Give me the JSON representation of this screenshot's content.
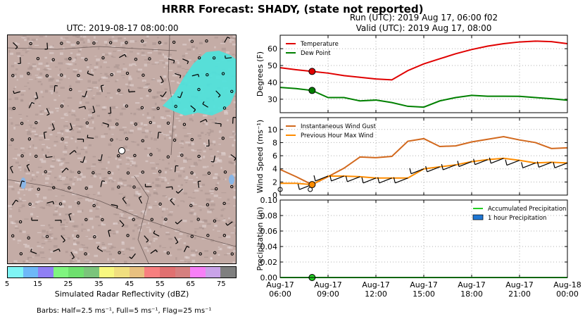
{
  "suptitle": "HRRR Forecast: SHADY, (state not reported)",
  "map": {
    "title": "UTC: 2019-08-17 08:00:00",
    "colorbar_label": "Simulated Radar Reflectivity (dBZ)",
    "colorbar_ticks": [
      "5",
      "15",
      "25",
      "35",
      "45",
      "55",
      "65",
      "75"
    ],
    "colorbar_colors": [
      "#7ff5f5",
      "#6db8f8",
      "#8f7ff4",
      "#7ff57f",
      "#6ee06e",
      "#7bc47b",
      "#f8f87f",
      "#f1df7f",
      "#e8c07f",
      "#f77f7f",
      "#e07070",
      "#d57f7f",
      "#f77ff7",
      "#c9a3e8",
      "#7f7f7f"
    ],
    "barb_note": "Barbs: Half=2.5 ms⁻¹, Full=5 ms⁻¹, Flag=25 ms⁻¹",
    "terrain_color": "#c4aca6",
    "echo_color": "#4de3dc"
  },
  "panel_title": {
    "run": "Run (UTC): 2019 Aug 17, 06:00 f02",
    "valid": "Valid (UTC): 2019 Aug 17, 08:00"
  },
  "chart_data": [
    {
      "type": "line",
      "ylabel": "Degrees (F)",
      "ylim": [
        22,
        68
      ],
      "yticks": [
        30,
        40,
        50,
        60
      ],
      "grid": true,
      "legend_placement": "top-left",
      "x_hours": [
        0,
        1,
        2,
        3,
        4,
        5,
        6,
        7,
        8,
        9,
        10,
        11,
        12,
        13,
        14,
        15,
        16,
        17,
        18
      ],
      "series": [
        {
          "name": "Temperature",
          "color": "#e00000",
          "values": [
            48.7,
            47.5,
            46.5,
            45.5,
            44.0,
            43.0,
            42.0,
            41.5,
            47.0,
            51.0,
            54.0,
            57.0,
            59.5,
            61.5,
            63.0,
            64.0,
            64.5,
            64.2,
            63.0
          ]
        },
        {
          "name": "Dew Point",
          "color": "#008000",
          "values": [
            37.0,
            36.3,
            35.2,
            31.0,
            31.0,
            29.0,
            29.5,
            28.0,
            25.8,
            25.3,
            29.0,
            31.0,
            32.3,
            31.8,
            31.8,
            31.7,
            31.0,
            30.3,
            29.4
          ]
        }
      ],
      "markers": [
        {
          "series": "Temperature",
          "hour": 2
        },
        {
          "series": "Dew Point",
          "hour": 2
        }
      ]
    },
    {
      "type": "line",
      "ylabel": "Wind Speed (ms⁻¹)",
      "ylim": [
        0,
        11.8
      ],
      "yticks": [
        0,
        2,
        4,
        6,
        8,
        10
      ],
      "grid": true,
      "legend_placement": "top-left",
      "x_hours": [
        0,
        1,
        2,
        3,
        4,
        5,
        6,
        7,
        8,
        9,
        10,
        11,
        12,
        13,
        14,
        15,
        16,
        17,
        18
      ],
      "series": [
        {
          "name": "Instantaneous Wind Gust",
          "color": "#d2691e",
          "values": [
            3.9,
            2.8,
            1.6,
            2.8,
            4.1,
            5.8,
            5.7,
            5.9,
            8.2,
            8.6,
            7.4,
            7.5,
            8.1,
            8.5,
            8.9,
            8.4,
            8.0,
            7.1,
            7.2
          ]
        },
        {
          "name": "Previous Hour Max Wind",
          "color": "#ff8c00",
          "values": [
            1.8,
            1.8,
            1.6,
            2.9,
            2.9,
            2.8,
            2.6,
            2.6,
            2.6,
            4.0,
            4.3,
            4.6,
            5.1,
            5.4,
            5.6,
            5.3,
            4.9,
            5.0,
            4.9
          ]
        }
      ],
      "markers": [
        {
          "series": "Previous Hour Max Wind",
          "hour": 2
        }
      ]
    },
    {
      "type": "line",
      "ylabel": "Precipitation (in)",
      "ylim": [
        0,
        0.1
      ],
      "yticks": [
        0.0,
        0.02,
        0.04,
        0.06,
        0.08,
        0.1
      ],
      "ytick_labels": [
        "0.00",
        "0.02",
        "0.04",
        "0.06",
        "0.08",
        "0.10"
      ],
      "grid": true,
      "legend_placement": "top-right",
      "series": [
        {
          "name": "Accumulated Precipitation",
          "color": "#22cc22",
          "kind": "line",
          "values": [
            0,
            0,
            0,
            0,
            0,
            0,
            0,
            0,
            0,
            0,
            0,
            0,
            0,
            0,
            0,
            0,
            0,
            0,
            0
          ]
        },
        {
          "name": "1 hour Precipitation",
          "color": "#1f77d4",
          "kind": "bar",
          "values": [
            0,
            0,
            0,
            0,
            0,
            0,
            0,
            0,
            0,
            0,
            0,
            0,
            0,
            0,
            0,
            0,
            0,
            0,
            0
          ]
        }
      ],
      "markers": [
        {
          "series": "Accumulated Precipitation",
          "hour": 2
        }
      ],
      "xtick_labels": [
        [
          "Aug-17",
          "06:00"
        ],
        [
          "Aug-17",
          "09:00"
        ],
        [
          "Aug-17",
          "12:00"
        ],
        [
          "Aug-17",
          "15:00"
        ],
        [
          "Aug-17",
          "18:00"
        ],
        [
          "Aug-17",
          "21:00"
        ],
        [
          "Aug-18",
          "00:00"
        ]
      ],
      "xtick_hours": [
        0,
        3,
        6,
        9,
        12,
        15,
        18
      ]
    }
  ]
}
